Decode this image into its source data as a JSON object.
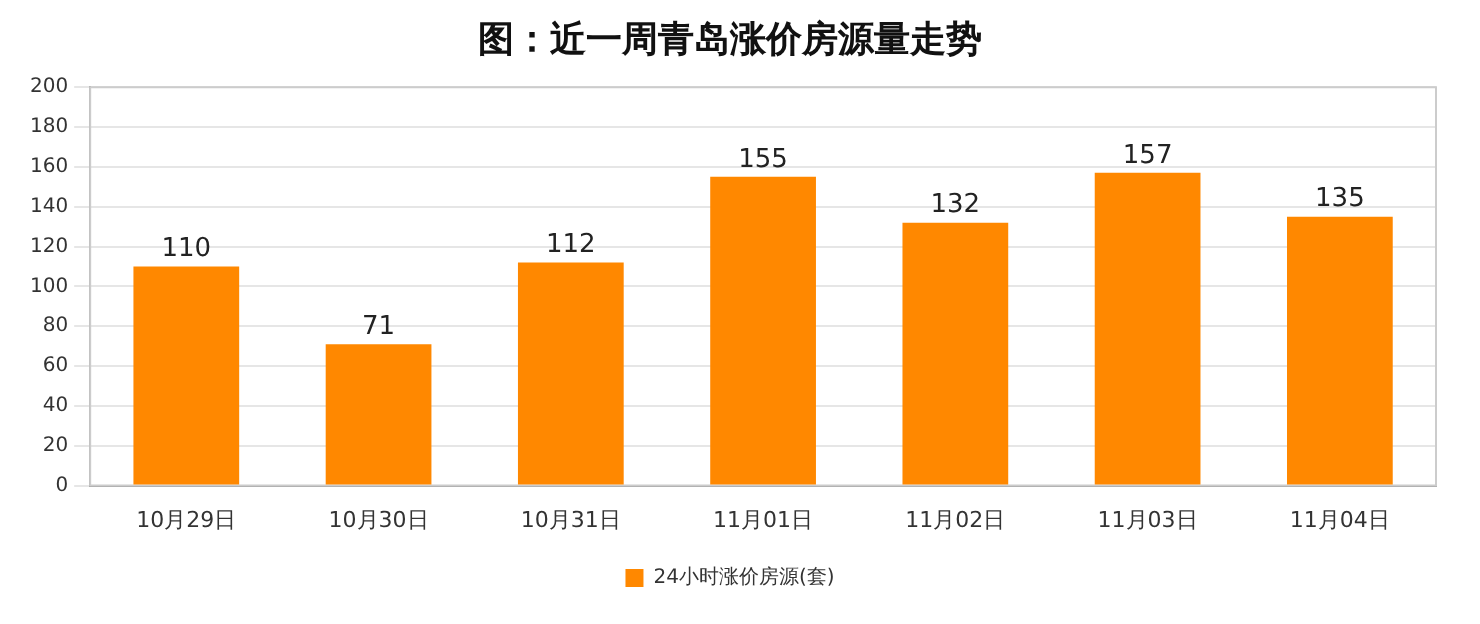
{
  "chart_data": {
    "type": "bar",
    "title": "图：近一周青岛涨价房源量走势",
    "categories": [
      "10月29日",
      "10月30日",
      "10月31日",
      "11月01日",
      "11月02日",
      "11月03日",
      "11月04日"
    ],
    "series": [
      {
        "name": "24小时涨价房源(套)",
        "color": "#ff8800",
        "values": [
          110,
          71,
          112,
          155,
          132,
          157,
          135
        ]
      }
    ],
    "ylim": [
      0,
      200
    ],
    "yticks": [
      0,
      20,
      40,
      60,
      80,
      100,
      120,
      140,
      160,
      180,
      200
    ],
    "grid": "y",
    "legend": "bottom",
    "data_labels": true
  }
}
